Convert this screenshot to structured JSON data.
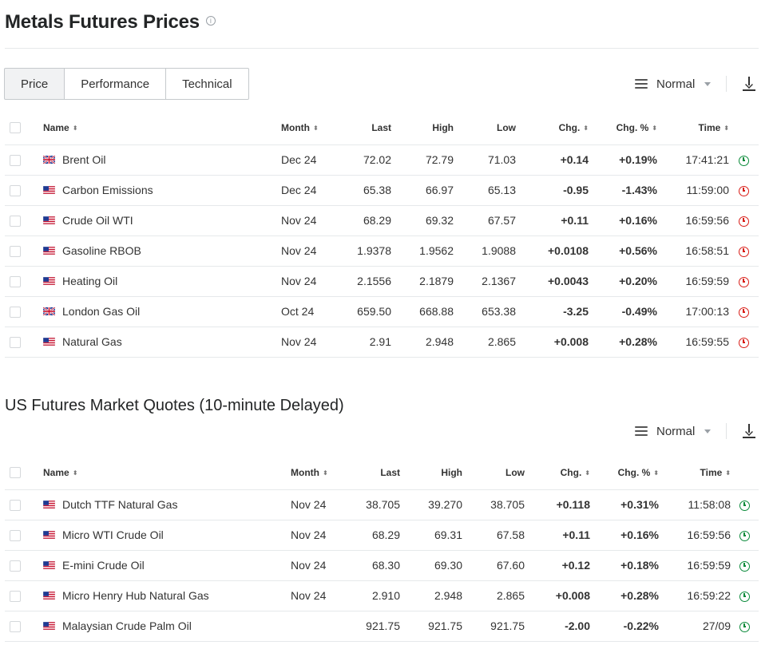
{
  "page": {
    "title": "Metals Futures Prices",
    "info_icon": "info-icon"
  },
  "tabs": [
    {
      "label": "Price",
      "active": true
    },
    {
      "label": "Performance",
      "active": false
    },
    {
      "label": "Technical",
      "active": false
    }
  ],
  "view_selector": {
    "label": "Normal",
    "icon": "menu-icon"
  },
  "download": {
    "icon": "download-icon"
  },
  "columns": {
    "name": "Name",
    "month": "Month",
    "last": "Last",
    "high": "High",
    "low": "Low",
    "chg": "Chg.",
    "chg_pct": "Chg. %",
    "time": "Time"
  },
  "table1": [
    {
      "flag": "uk",
      "name": "Brent Oil",
      "month": "Dec 24",
      "last": "72.02",
      "high": "72.79",
      "low": "71.03",
      "chg": "+0.14",
      "chg_pct": "+0.19%",
      "dir": "pos",
      "time": "17:41:21",
      "status": "open"
    },
    {
      "flag": "us",
      "name": "Carbon Emissions",
      "month": "Dec 24",
      "last": "65.38",
      "high": "66.97",
      "low": "65.13",
      "chg": "-0.95",
      "chg_pct": "-1.43%",
      "dir": "neg",
      "time": "11:59:00",
      "status": "closed"
    },
    {
      "flag": "us",
      "name": "Crude Oil WTI",
      "month": "Nov 24",
      "last": "68.29",
      "high": "69.32",
      "low": "67.57",
      "chg": "+0.11",
      "chg_pct": "+0.16%",
      "dir": "pos",
      "time": "16:59:56",
      "status": "closed"
    },
    {
      "flag": "us",
      "name": "Gasoline RBOB",
      "month": "Nov 24",
      "last": "1.9378",
      "high": "1.9562",
      "low": "1.9088",
      "chg": "+0.0108",
      "chg_pct": "+0.56%",
      "dir": "pos",
      "time": "16:58:51",
      "status": "closed"
    },
    {
      "flag": "us",
      "name": "Heating Oil",
      "month": "Nov 24",
      "last": "2.1556",
      "high": "2.1879",
      "low": "2.1367",
      "chg": "+0.0043",
      "chg_pct": "+0.20%",
      "dir": "pos",
      "time": "16:59:59",
      "status": "closed"
    },
    {
      "flag": "uk",
      "name": "London Gas Oil",
      "month": "Oct 24",
      "last": "659.50",
      "high": "668.88",
      "low": "653.38",
      "chg": "-3.25",
      "chg_pct": "-0.49%",
      "dir": "neg",
      "time": "17:00:13",
      "status": "closed"
    },
    {
      "flag": "us",
      "name": "Natural Gas",
      "month": "Nov 24",
      "last": "2.91",
      "high": "2.948",
      "low": "2.865",
      "chg": "+0.008",
      "chg_pct": "+0.28%",
      "dir": "pos",
      "time": "16:59:55",
      "status": "closed"
    }
  ],
  "section2": {
    "title": "US Futures Market Quotes (10-minute Delayed)"
  },
  "table2": [
    {
      "flag": "us",
      "name": "Dutch TTF Natural Gas",
      "month": "Nov 24",
      "last": "38.705",
      "high": "39.270",
      "low": "38.705",
      "chg": "+0.118",
      "chg_pct": "+0.31%",
      "dir": "pos",
      "time": "11:58:08",
      "status": "open"
    },
    {
      "flag": "us",
      "name": "Micro WTI Crude Oil",
      "month": "Nov 24",
      "last": "68.29",
      "high": "69.31",
      "low": "67.58",
      "chg": "+0.11",
      "chg_pct": "+0.16%",
      "dir": "pos",
      "time": "16:59:56",
      "status": "open"
    },
    {
      "flag": "us",
      "name": "E-mini Crude Oil",
      "month": "Nov 24",
      "last": "68.30",
      "high": "69.30",
      "low": "67.60",
      "chg": "+0.12",
      "chg_pct": "+0.18%",
      "dir": "pos",
      "time": "16:59:59",
      "status": "open"
    },
    {
      "flag": "us",
      "name": "Micro Henry Hub Natural Gas",
      "month": "Nov 24",
      "last": "2.910",
      "high": "2.948",
      "low": "2.865",
      "chg": "+0.008",
      "chg_pct": "+0.28%",
      "dir": "pos",
      "time": "16:59:22",
      "status": "open"
    },
    {
      "flag": "us",
      "name": "Malaysian Crude Palm Oil",
      "month": "",
      "last": "921.75",
      "high": "921.75",
      "low": "921.75",
      "chg": "-2.00",
      "chg_pct": "-0.22%",
      "dir": "neg",
      "time": "27/09",
      "status": "open"
    }
  ],
  "colors": {
    "positive": "#0a8a3a",
    "negative": "#d91e18",
    "border": "#e6e9eb"
  }
}
